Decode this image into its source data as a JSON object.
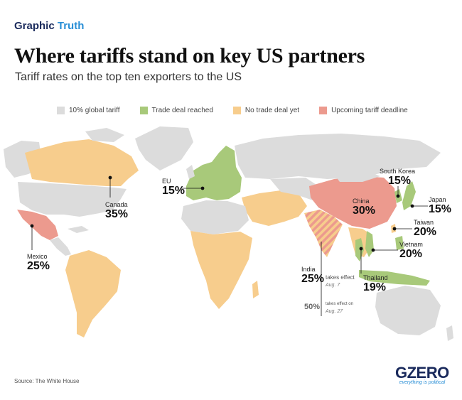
{
  "header": {
    "brand_part1": "Graphic",
    "brand_part2": "Truth",
    "title": "Where tariffs stand on key US partners",
    "subtitle": "Tariff rates on the top ten exporters to the US"
  },
  "legend": [
    {
      "label": "10% global tariff",
      "color": "#dcdcdc"
    },
    {
      "label": "Trade deal reached",
      "color": "#a8c97a"
    },
    {
      "label": "No trade deal yet",
      "color": "#f7cd8d"
    },
    {
      "label": "Upcoming tariff deadline",
      "color": "#ec9a8e"
    }
  ],
  "countries": {
    "canada": {
      "name": "Canada",
      "rate": "35%"
    },
    "mexico": {
      "name": "Mexico",
      "rate": "25%"
    },
    "eu": {
      "name": "EU",
      "rate": "15%"
    },
    "china": {
      "name": "China",
      "rate": "30%"
    },
    "south_korea": {
      "name": "South Korea",
      "rate": "15%"
    },
    "japan": {
      "name": "Japan",
      "rate": "15%"
    },
    "taiwan": {
      "name": "Taiwan",
      "rate": "20%"
    },
    "vietnam": {
      "name": "Vietnam",
      "rate": "20%"
    },
    "thailand": {
      "name": "Thailand",
      "rate": "19%"
    },
    "india": {
      "name": "India",
      "rate": "25%",
      "note": "takes effect",
      "date": "Aug. 7",
      "rate2": "50%",
      "note2": "takes effect on",
      "date2": "Aug. 27"
    }
  },
  "footer": {
    "source": "Source: The White House",
    "logo": "GZERO",
    "tagline": "everything is political"
  }
}
